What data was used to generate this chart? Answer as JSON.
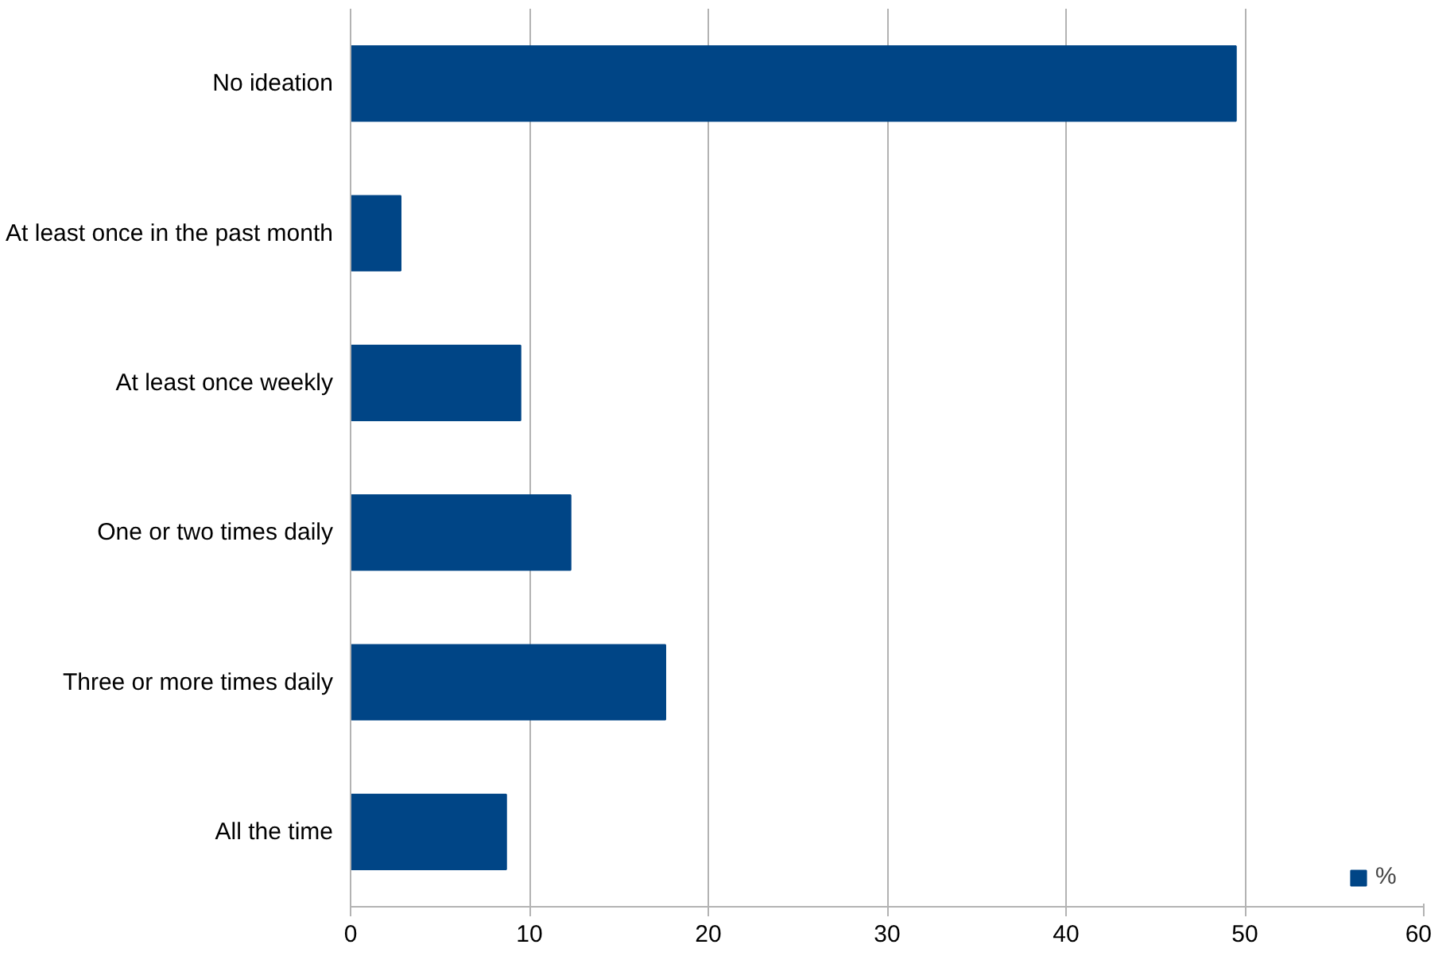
{
  "chart_data": {
    "type": "bar",
    "orientation": "horizontal",
    "categories": [
      "No ideation",
      "At least once in the past month",
      "At least once weekly",
      "One or two times daily",
      "Three or more times daily",
      "All the time"
    ],
    "series": [
      {
        "name": "%",
        "color": "#004586",
        "values": [
          49.5,
          2.8,
          9.5,
          12.3,
          17.6,
          8.7
        ]
      }
    ],
    "xlim": [
      0,
      60
    ],
    "xticks": [
      0,
      10,
      20,
      30,
      40,
      50,
      60
    ],
    "grid": "x",
    "legend": "bottom right"
  }
}
